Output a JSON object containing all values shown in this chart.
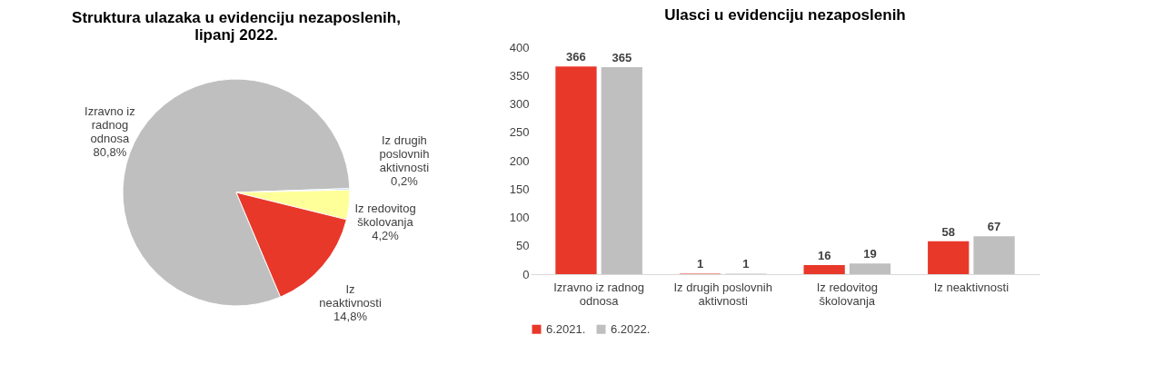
{
  "chart_data": [
    {
      "type": "pie",
      "title": "Struktura ulazaka u evidenciju nezaposlenih, lipanj 2022.",
      "categories": [
        "Izravno iz radnog odnosa",
        "Iz drugih poslovnih aktivnosti",
        "Iz redovitog školovanja",
        "Iz neaktivnosti"
      ],
      "values": [
        80.8,
        0.2,
        4.2,
        14.8
      ],
      "value_labels": [
        "80,8%",
        "0,2%",
        "4,2%",
        "14,8%"
      ],
      "colors": [
        "#bfbfbf",
        "#9dc3e6",
        "#ffff99",
        "#e8382a"
      ]
    },
    {
      "type": "bar",
      "title": "Ulasci u evidenciju nezaposlenih",
      "categories": [
        "Izravno iz radnog odnosa",
        "Iz drugih poslovnih aktivnosti",
        "Iz redovitog školovanja",
        "Iz neaktivnosti"
      ],
      "series": [
        {
          "name": "6.2021.",
          "color": "#e8382a",
          "values": [
            366,
            1,
            16,
            58
          ]
        },
        {
          "name": "6.2022.",
          "color": "#bfbfbf",
          "values": [
            365,
            1,
            19,
            67
          ]
        }
      ],
      "ylim": [
        0,
        400
      ],
      "yticks": [
        0,
        50,
        100,
        150,
        200,
        250,
        300,
        350,
        400
      ],
      "data_labels": true,
      "legend": "bottom",
      "grid": false
    }
  ]
}
